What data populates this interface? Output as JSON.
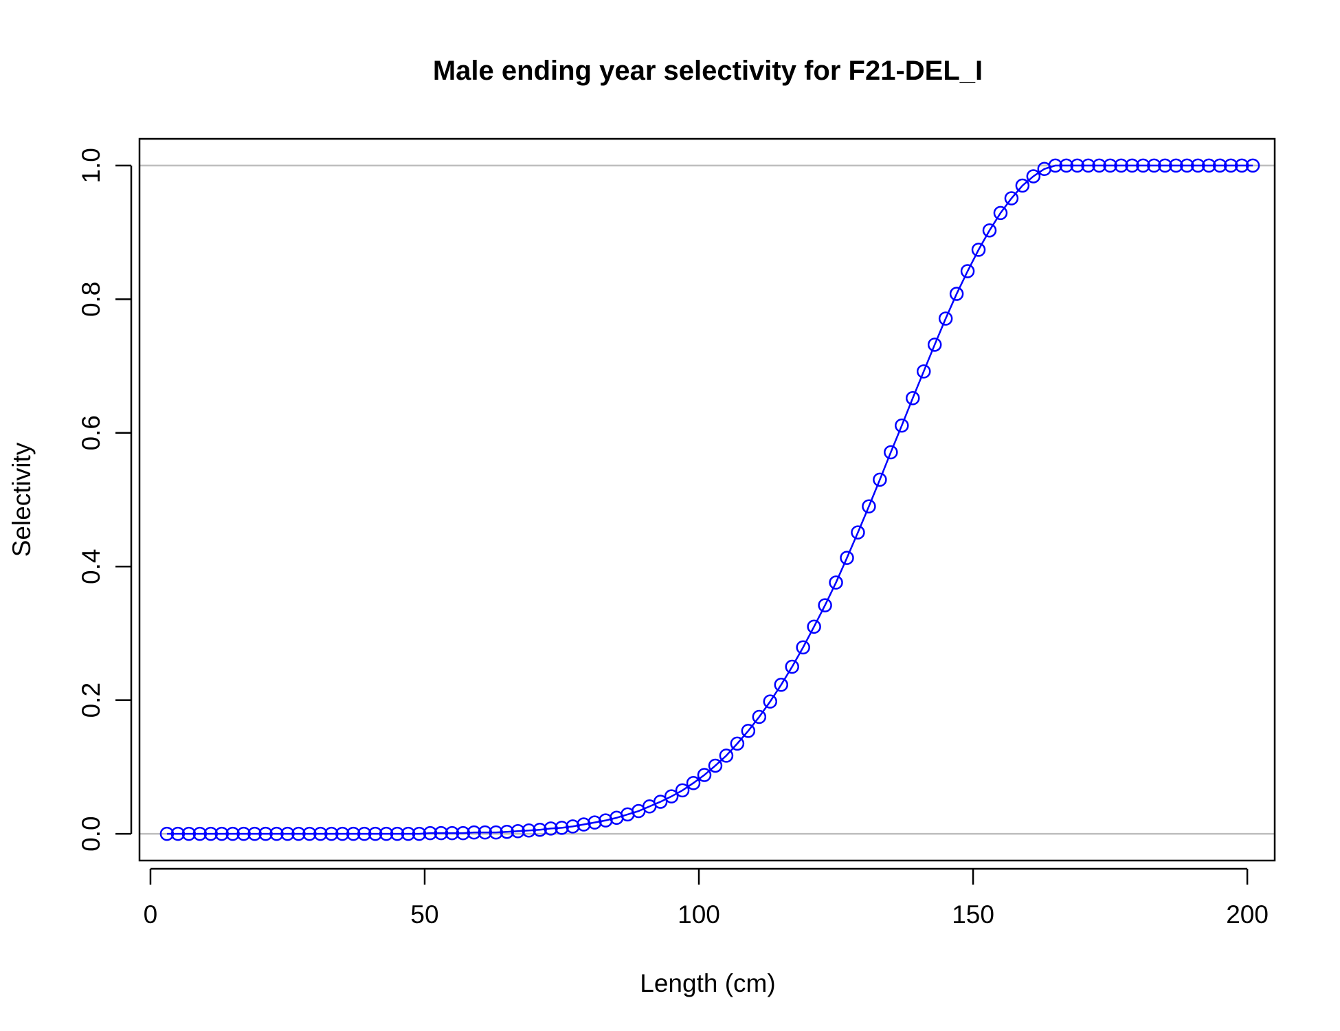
{
  "chart_data": {
    "type": "line",
    "title": "Male ending year selectivity for F21-DEL_I",
    "xlabel": "Length (cm)",
    "ylabel": "Selectivity",
    "xlim": [
      -2,
      205
    ],
    "ylim": [
      -0.04,
      1.04
    ],
    "x_ticks": [
      0,
      50,
      100,
      150,
      200
    ],
    "x_tick_labels": [
      "0",
      "50",
      "100",
      "150",
      "200"
    ],
    "y_ticks": [
      0,
      0.2,
      0.4,
      0.6,
      0.8,
      1
    ],
    "y_tick_labels": [
      "0.0",
      "0.2",
      "0.4",
      "0.6",
      "0.8",
      "1.0"
    ],
    "reference_lines": [
      0,
      1
    ],
    "reference_line_color": "#bebebe",
    "series_color": "#0000ff",
    "marker": "open-circle",
    "grid": false,
    "series": [
      {
        "x": [
          3,
          5,
          7,
          9,
          11,
          13,
          15,
          17,
          19,
          21,
          23,
          25,
          27,
          29,
          31,
          33,
          35,
          37,
          39,
          41,
          43,
          45,
          47,
          49,
          51,
          53,
          55,
          57,
          59,
          61,
          63,
          65,
          67,
          69,
          71,
          73,
          75,
          77,
          79,
          81,
          83,
          85,
          87,
          89,
          91,
          93,
          95,
          97,
          99,
          101,
          103,
          105,
          107,
          109,
          111,
          113,
          115,
          117,
          119,
          121,
          123,
          125,
          127,
          129,
          131,
          133,
          135,
          137,
          139,
          141,
          143,
          145,
          147,
          149,
          151,
          153,
          155,
          157,
          159,
          161,
          163,
          165,
          167,
          169,
          171,
          173,
          175,
          177,
          179,
          181,
          183,
          185,
          187,
          189,
          191,
          193,
          195,
          197,
          199,
          201
        ],
        "values": [
          0.0,
          0.0,
          0.0,
          0.0,
          0.0,
          0.0,
          0.0,
          0.0,
          0.0,
          0.0,
          0.0,
          0.0,
          0.0,
          0.0,
          0.0,
          0.0,
          0.0,
          0.0,
          0.0,
          0.0,
          0.0,
          0.0,
          0.0,
          0.0,
          0.001,
          0.001,
          0.001,
          0.001,
          0.002,
          0.002,
          0.002,
          0.003,
          0.004,
          0.005,
          0.006,
          0.008,
          0.009,
          0.011,
          0.014,
          0.017,
          0.02,
          0.024,
          0.029,
          0.034,
          0.041,
          0.048,
          0.056,
          0.065,
          0.076,
          0.088,
          0.102,
          0.117,
          0.135,
          0.154,
          0.175,
          0.198,
          0.223,
          0.25,
          0.279,
          0.31,
          0.342,
          0.376,
          0.413,
          0.451,
          0.49,
          0.53,
          0.571,
          0.611,
          0.652,
          0.692,
          0.732,
          0.771,
          0.808,
          0.842,
          0.874,
          0.903,
          0.929,
          0.951,
          0.97,
          0.984,
          0.995,
          1.0,
          1.0,
          1.0,
          1.0,
          1.0,
          1.0,
          1.0,
          1.0,
          1.0,
          1.0,
          1.0,
          1.0,
          1.0,
          1.0,
          1.0,
          1.0,
          1.0,
          1.0,
          1.0
        ]
      }
    ]
  }
}
